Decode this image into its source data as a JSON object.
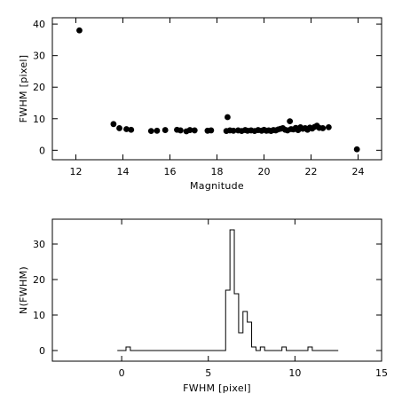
{
  "chart_data": [
    {
      "type": "scatter",
      "xlabel": "Magnitude",
      "ylabel": "FWHM [pixel]",
      "xlim": [
        11,
        25
      ],
      "ylim": [
        -3,
        42
      ],
      "xticks": [
        12,
        14,
        16,
        18,
        20,
        22,
        24
      ],
      "yticks": [
        0,
        10,
        20,
        30,
        40
      ],
      "grid": false,
      "points": [
        {
          "x": 12.15,
          "y": 38.0
        },
        {
          "x": 13.6,
          "y": 8.3
        },
        {
          "x": 13.85,
          "y": 7.0
        },
        {
          "x": 14.15,
          "y": 6.7
        },
        {
          "x": 14.35,
          "y": 6.5
        },
        {
          "x": 15.2,
          "y": 6.1
        },
        {
          "x": 15.45,
          "y": 6.2
        },
        {
          "x": 15.8,
          "y": 6.4
        },
        {
          "x": 16.3,
          "y": 6.5
        },
        {
          "x": 16.45,
          "y": 6.3
        },
        {
          "x": 16.7,
          "y": 6.0
        },
        {
          "x": 16.85,
          "y": 6.4
        },
        {
          "x": 17.05,
          "y": 6.3
        },
        {
          "x": 17.6,
          "y": 6.2
        },
        {
          "x": 17.75,
          "y": 6.3
        },
        {
          "x": 18.45,
          "y": 10.5
        },
        {
          "x": 18.4,
          "y": 6.1
        },
        {
          "x": 18.55,
          "y": 6.3
        },
        {
          "x": 18.7,
          "y": 6.2
        },
        {
          "x": 18.9,
          "y": 6.3
        },
        {
          "x": 19.05,
          "y": 6.1
        },
        {
          "x": 19.2,
          "y": 6.4
        },
        {
          "x": 19.3,
          "y": 6.2
        },
        {
          "x": 19.45,
          "y": 6.3
        },
        {
          "x": 19.6,
          "y": 6.1
        },
        {
          "x": 19.75,
          "y": 6.4
        },
        {
          "x": 19.9,
          "y": 6.2
        },
        {
          "x": 20.0,
          "y": 6.5
        },
        {
          "x": 20.1,
          "y": 6.2
        },
        {
          "x": 20.2,
          "y": 6.3
        },
        {
          "x": 20.3,
          "y": 6.1
        },
        {
          "x": 20.4,
          "y": 6.4
        },
        {
          "x": 20.5,
          "y": 6.3
        },
        {
          "x": 20.6,
          "y": 6.6
        },
        {
          "x": 20.7,
          "y": 6.8
        },
        {
          "x": 20.8,
          "y": 7.0
        },
        {
          "x": 20.9,
          "y": 6.5
        },
        {
          "x": 21.0,
          "y": 6.3
        },
        {
          "x": 21.1,
          "y": 9.2
        },
        {
          "x": 21.15,
          "y": 6.7
        },
        {
          "x": 21.25,
          "y": 6.6
        },
        {
          "x": 21.35,
          "y": 7.1
        },
        {
          "x": 21.45,
          "y": 6.4
        },
        {
          "x": 21.55,
          "y": 7.3
        },
        {
          "x": 21.65,
          "y": 6.8
        },
        {
          "x": 21.75,
          "y": 7.0
        },
        {
          "x": 21.85,
          "y": 6.5
        },
        {
          "x": 21.95,
          "y": 7.2
        },
        {
          "x": 22.05,
          "y": 6.9
        },
        {
          "x": 22.15,
          "y": 7.4
        },
        {
          "x": 22.25,
          "y": 7.8
        },
        {
          "x": 22.35,
          "y": 7.1
        },
        {
          "x": 22.5,
          "y": 7.0
        },
        {
          "x": 22.75,
          "y": 7.3
        },
        {
          "x": 23.95,
          "y": 0.3
        }
      ]
    },
    {
      "type": "histogram",
      "xlabel": "FWHM [pixel]",
      "ylabel": "N(FWHM)",
      "xlim": [
        -4,
        15
      ],
      "ylim": [
        -3,
        37
      ],
      "xticks": [
        0,
        5,
        10,
        15
      ],
      "yticks": [
        0,
        10,
        20,
        30
      ],
      "grid": false,
      "bin_width": 0.25,
      "steps": [
        {
          "x0": -0.25,
          "x1": 0.25,
          "count": 0
        },
        {
          "x0": 0.25,
          "x1": 0.5,
          "count": 1
        },
        {
          "x0": 0.5,
          "x1": 6.0,
          "count": 0
        },
        {
          "x0": 6.0,
          "x1": 6.25,
          "count": 17
        },
        {
          "x0": 6.25,
          "x1": 6.5,
          "count": 34
        },
        {
          "x0": 6.5,
          "x1": 6.75,
          "count": 16
        },
        {
          "x0": 6.75,
          "x1": 7.0,
          "count": 5
        },
        {
          "x0": 7.0,
          "x1": 7.25,
          "count": 11
        },
        {
          "x0": 7.25,
          "x1": 7.5,
          "count": 8
        },
        {
          "x0": 7.5,
          "x1": 7.75,
          "count": 1
        },
        {
          "x0": 7.75,
          "x1": 8.0,
          "count": 0
        },
        {
          "x0": 8.0,
          "x1": 8.25,
          "count": 1
        },
        {
          "x0": 8.25,
          "x1": 9.25,
          "count": 0
        },
        {
          "x0": 9.25,
          "x1": 9.5,
          "count": 1
        },
        {
          "x0": 9.5,
          "x1": 10.75,
          "count": 0
        },
        {
          "x0": 10.75,
          "x1": 11.0,
          "count": 1
        },
        {
          "x0": 11.0,
          "x1": 12.5,
          "count": 0
        }
      ]
    }
  ]
}
